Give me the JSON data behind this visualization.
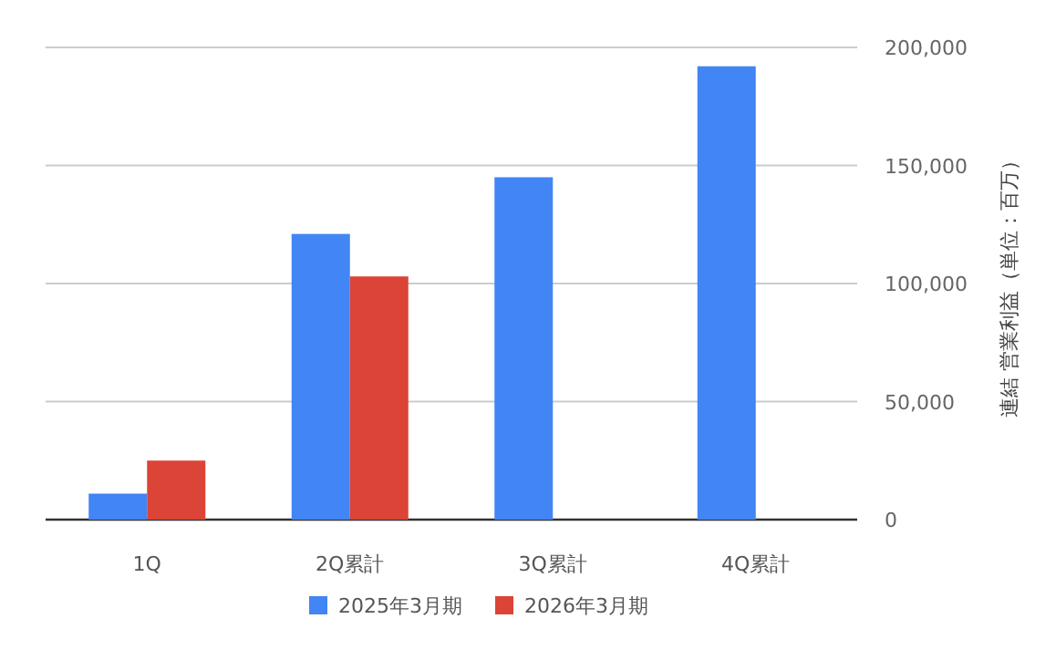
{
  "chart_data": {
    "type": "bar",
    "ylabel": "連結 営業利益（単位：百万）",
    "categories": [
      "1Q",
      "2Q累計",
      "3Q累計",
      "4Q累計"
    ],
    "series": [
      {
        "name": "2025年3月期",
        "color": "#4285f4",
        "values": [
          11000,
          121000,
          145000,
          192000
        ]
      },
      {
        "name": "2026年3月期",
        "color": "#db4437",
        "values": [
          25000,
          103000,
          null,
          null
        ]
      }
    ],
    "ylim": [
      0,
      200000
    ],
    "yticks": [
      {
        "value": 0,
        "label": "0"
      },
      {
        "value": 50000,
        "label": "50,000"
      },
      {
        "value": 100000,
        "label": "100,000"
      },
      {
        "value": 150000,
        "label": "150,000"
      },
      {
        "value": 200000,
        "label": "200,000"
      }
    ],
    "grid": "y",
    "legend": "bottom"
  }
}
